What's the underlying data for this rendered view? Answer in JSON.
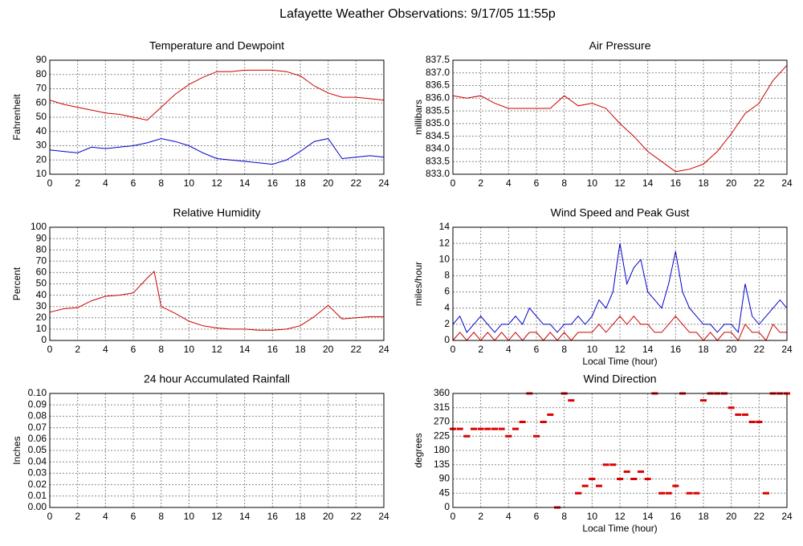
{
  "title": "Lafayette Weather Observations: 9/17/05 11:55p",
  "chart_data": [
    {
      "type": "line",
      "title": "Temperature and Dewpoint",
      "y_label": "Fahrenheit",
      "x": [
        0,
        1,
        2,
        3,
        4,
        5,
        6,
        7,
        8,
        9,
        10,
        11,
        12,
        13,
        14,
        15,
        16,
        17,
        18,
        19,
        20,
        21,
        22,
        23,
        24
      ],
      "series": [
        {
          "color": "#cc0000",
          "values": [
            62,
            59,
            57,
            55,
            53,
            52,
            50,
            48,
            57,
            66,
            73,
            78,
            82,
            82,
            83,
            83,
            83,
            82,
            79,
            72,
            67,
            64,
            64,
            63,
            62
          ]
        },
        {
          "color": "#0000cc",
          "values": [
            27,
            26,
            25,
            29,
            28,
            29,
            30,
            32,
            35,
            33,
            30,
            25,
            21,
            20,
            19,
            18,
            17,
            20,
            26,
            33,
            35,
            21,
            22,
            23,
            22
          ]
        }
      ],
      "xlim": [
        0,
        24
      ],
      "xticks": [
        0,
        2,
        4,
        6,
        8,
        10,
        12,
        14,
        16,
        18,
        20,
        22,
        24
      ],
      "ylim": [
        10,
        90
      ],
      "yticks": [
        10,
        20,
        30,
        40,
        50,
        60,
        70,
        80,
        90
      ],
      "grid": true
    },
    {
      "type": "line",
      "title": "Air Pressure",
      "y_label": "millibars",
      "x": [
        0,
        1,
        2,
        3,
        4,
        5,
        6,
        7,
        8,
        9,
        10,
        11,
        12,
        13,
        14,
        15,
        16,
        17,
        18,
        19,
        20,
        21,
        22,
        23,
        24
      ],
      "series": [
        {
          "color": "#cc0000",
          "values": [
            836.1,
            836.0,
            836.1,
            835.8,
            835.6,
            835.6,
            835.6,
            835.6,
            836.1,
            835.7,
            835.8,
            835.6,
            835.0,
            834.5,
            833.9,
            833.5,
            833.1,
            833.2,
            833.4,
            833.9,
            834.6,
            835.4,
            835.8,
            836.7,
            837.3
          ]
        }
      ],
      "xlim": [
        0,
        24
      ],
      "xticks": [
        0,
        2,
        4,
        6,
        8,
        10,
        12,
        14,
        16,
        18,
        20,
        22,
        24
      ],
      "ylim": [
        833.0,
        837.5
      ],
      "yticks": [
        {
          "value": 833.0,
          "label": "833.0"
        },
        {
          "value": 833.5,
          "label": "833.5"
        },
        {
          "value": 834.0,
          "label": "834.0"
        },
        {
          "value": 834.5,
          "label": "834.5"
        },
        {
          "value": 835.0,
          "label": "835.0"
        },
        {
          "value": 835.5,
          "label": "835.5"
        },
        {
          "value": 836.0,
          "label": "836.0"
        },
        {
          "value": 836.5,
          "label": "836.5"
        },
        {
          "value": 837.0,
          "label": "837.0"
        },
        {
          "value": 837.5,
          "label": "837.5"
        }
      ],
      "grid": true
    },
    {
      "type": "line",
      "title": "Relative Humidity",
      "y_label": "Percent",
      "x": [
        0,
        1,
        2,
        3,
        4,
        5,
        6,
        7,
        7.5,
        8,
        9,
        10,
        11,
        12,
        13,
        14,
        15,
        16,
        17,
        18,
        19,
        20,
        21,
        22,
        23,
        24
      ],
      "series": [
        {
          "color": "#cc0000",
          "values": [
            25,
            28,
            29,
            35,
            39,
            40,
            42,
            55,
            61,
            30,
            24,
            17,
            13,
            11,
            10,
            10,
            9,
            9,
            10,
            13,
            21,
            31,
            19,
            20,
            21,
            21
          ]
        }
      ],
      "xlim": [
        0,
        24
      ],
      "xticks": [
        0,
        2,
        4,
        6,
        8,
        10,
        12,
        14,
        16,
        18,
        20,
        22,
        24
      ],
      "ylim": [
        0,
        100
      ],
      "yticks": [
        0,
        10,
        20,
        30,
        40,
        50,
        60,
        70,
        80,
        90,
        100
      ],
      "grid": true
    },
    {
      "type": "line",
      "title": "Wind Speed and Peak Gust",
      "y_label": "miles/hour",
      "x_label": "Local Time (hour)",
      "x": [
        0,
        0.5,
        1,
        1.5,
        2,
        2.5,
        3,
        3.5,
        4,
        4.5,
        5,
        5.5,
        6,
        6.5,
        7,
        7.5,
        8,
        8.5,
        9,
        9.5,
        10,
        10.5,
        11,
        11.5,
        12,
        12.5,
        13,
        13.5,
        14,
        14.5,
        15,
        15.5,
        16,
        16.5,
        17,
        17.5,
        18,
        18.5,
        19,
        19.5,
        20,
        20.5,
        21,
        21.5,
        22,
        22.5,
        23,
        23.5,
        24
      ],
      "series": [
        {
          "color": "#0000cc",
          "values": [
            2,
            3,
            1,
            2,
            3,
            2,
            1,
            2,
            2,
            3,
            2,
            4,
            3,
            2,
            2,
            1,
            2,
            2,
            3,
            2,
            3,
            5,
            4,
            6,
            12,
            7,
            9,
            10,
            6,
            5,
            4,
            7,
            11,
            6,
            4,
            3,
            2,
            2,
            1,
            2,
            2,
            1,
            7,
            3,
            2,
            3,
            4,
            5,
            4
          ]
        },
        {
          "color": "#cc0000",
          "values": [
            0,
            1,
            0,
            1,
            0,
            1,
            0,
            1,
            0,
            1,
            0,
            1,
            1,
            0,
            1,
            0,
            1,
            0,
            1,
            1,
            1,
            2,
            1,
            2,
            3,
            2,
            3,
            2,
            2,
            1,
            1,
            2,
            3,
            2,
            1,
            1,
            0,
            1,
            0,
            1,
            1,
            0,
            2,
            1,
            1,
            0,
            2,
            1,
            1
          ]
        }
      ],
      "xlim": [
        0,
        24
      ],
      "xticks": [
        0,
        2,
        4,
        6,
        8,
        10,
        12,
        14,
        16,
        18,
        20,
        22,
        24
      ],
      "ylim": [
        0,
        14
      ],
      "yticks": [
        0,
        2,
        4,
        6,
        8,
        10,
        12,
        14
      ],
      "grid": true
    },
    {
      "type": "line",
      "title": "24 hour Accumulated Rainfall",
      "y_label": "Inches",
      "x": [
        0,
        24
      ],
      "series": [
        {
          "color": "#cc0000",
          "values": [
            0,
            0
          ]
        }
      ],
      "xlim": [
        0,
        24
      ],
      "xticks": [
        0,
        2,
        4,
        6,
        8,
        10,
        12,
        14,
        16,
        18,
        20,
        22,
        24
      ],
      "ylim": [
        0,
        0.1
      ],
      "yticks": [
        {
          "value": 0,
          "label": "0.00"
        },
        {
          "value": 0.01,
          "label": "0.01"
        },
        {
          "value": 0.02,
          "label": "0.02"
        },
        {
          "value": 0.03,
          "label": "0.03"
        },
        {
          "value": 0.04,
          "label": "0.04"
        },
        {
          "value": 0.05,
          "label": "0.05"
        },
        {
          "value": 0.06,
          "label": "0.06"
        },
        {
          "value": 0.07,
          "label": "0.07"
        },
        {
          "value": 0.08,
          "label": "0.08"
        },
        {
          "value": 0.09,
          "label": "0.09"
        },
        {
          "value": 0.1,
          "label": "0.10"
        }
      ],
      "grid": true
    },
    {
      "type": "scatter",
      "title": "Wind Direction",
      "y_label": "degrees",
      "x_label": "Local Time (hour)",
      "x": [
        0,
        0.5,
        1,
        1.5,
        2,
        2.5,
        3,
        3.5,
        4,
        4.5,
        5,
        5.5,
        6,
        6.5,
        7,
        7.5,
        8,
        8.5,
        9,
        9.5,
        10,
        10.5,
        11,
        11.5,
        12,
        12.5,
        13,
        13.5,
        14,
        14.5,
        15,
        15.5,
        16,
        16.5,
        17,
        17.5,
        18,
        18.5,
        19,
        19.5,
        20,
        20.5,
        21,
        21.5,
        22,
        22.5,
        23,
        23.5,
        24
      ],
      "series": [
        {
          "color": "#dd0000",
          "values": [
            248,
            248,
            225,
            248,
            248,
            248,
            248,
            248,
            225,
            248,
            270,
            360,
            225,
            270,
            293,
            0,
            360,
            338,
            45,
            68,
            90,
            68,
            135,
            135,
            90,
            113,
            90,
            113,
            90,
            360,
            45,
            45,
            68,
            360,
            45,
            45,
            338,
            360,
            360,
            360,
            315,
            293,
            293,
            270,
            270,
            45,
            360,
            360,
            360
          ]
        }
      ],
      "xlim": [
        0,
        24
      ],
      "xticks": [
        0,
        2,
        4,
        6,
        8,
        10,
        12,
        14,
        16,
        18,
        20,
        22,
        24
      ],
      "ylim": [
        0,
        360
      ],
      "yticks": [
        0,
        45,
        90,
        135,
        180,
        225,
        270,
        315,
        360
      ],
      "grid": true
    }
  ]
}
